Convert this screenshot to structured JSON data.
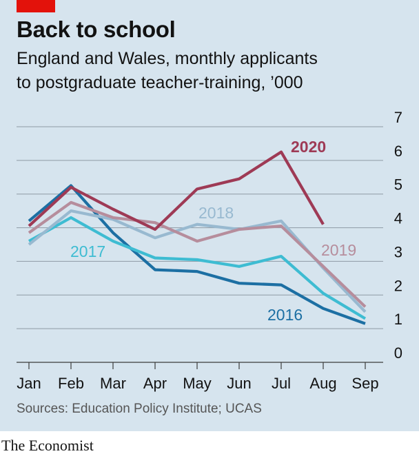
{
  "title": "Back to school",
  "subtitle_line1": "England and Wales, monthly applicants",
  "subtitle_line2": "to postgraduate teacher-training, ’000",
  "source": "Sources: Education Policy Institute; UCAS",
  "brand": "The Economist",
  "colors": {
    "background": "#d6e4ee",
    "accent": "#e3120b",
    "gridline": "#8e9aa4"
  },
  "chart_data": {
    "type": "line",
    "categories": [
      "Jan",
      "Feb",
      "Mar",
      "Apr",
      "May",
      "Jun",
      "Jul",
      "Aug",
      "Sep"
    ],
    "ylim": [
      0,
      7
    ],
    "yticks": [
      "0",
      "1",
      "2",
      "3",
      "4",
      "5",
      "6",
      "7"
    ],
    "grid": true,
    "series": [
      {
        "name": "2016",
        "color": "#1c6fa3",
        "values": [
          4.2,
          5.25,
          3.85,
          2.75,
          2.7,
          2.35,
          2.3,
          1.6,
          1.15
        ]
      },
      {
        "name": "2017",
        "color": "#3ebcd2",
        "values": [
          3.6,
          4.3,
          3.6,
          3.1,
          3.05,
          2.85,
          3.15,
          2.05,
          1.3
        ]
      },
      {
        "name": "2018",
        "color": "#98b9d0",
        "values": [
          3.5,
          4.5,
          4.25,
          3.7,
          4.1,
          3.95,
          4.2,
          2.8,
          1.5
        ]
      },
      {
        "name": "2019",
        "color": "#b68d9c",
        "values": [
          3.85,
          4.75,
          4.3,
          4.15,
          3.6,
          3.95,
          4.05,
          2.85,
          1.65
        ]
      },
      {
        "name": "2020",
        "color": "#9e3a55",
        "values": [
          4.05,
          5.2,
          4.55,
          3.95,
          5.15,
          5.45,
          6.25,
          4.1,
          null
        ]
      }
    ]
  }
}
